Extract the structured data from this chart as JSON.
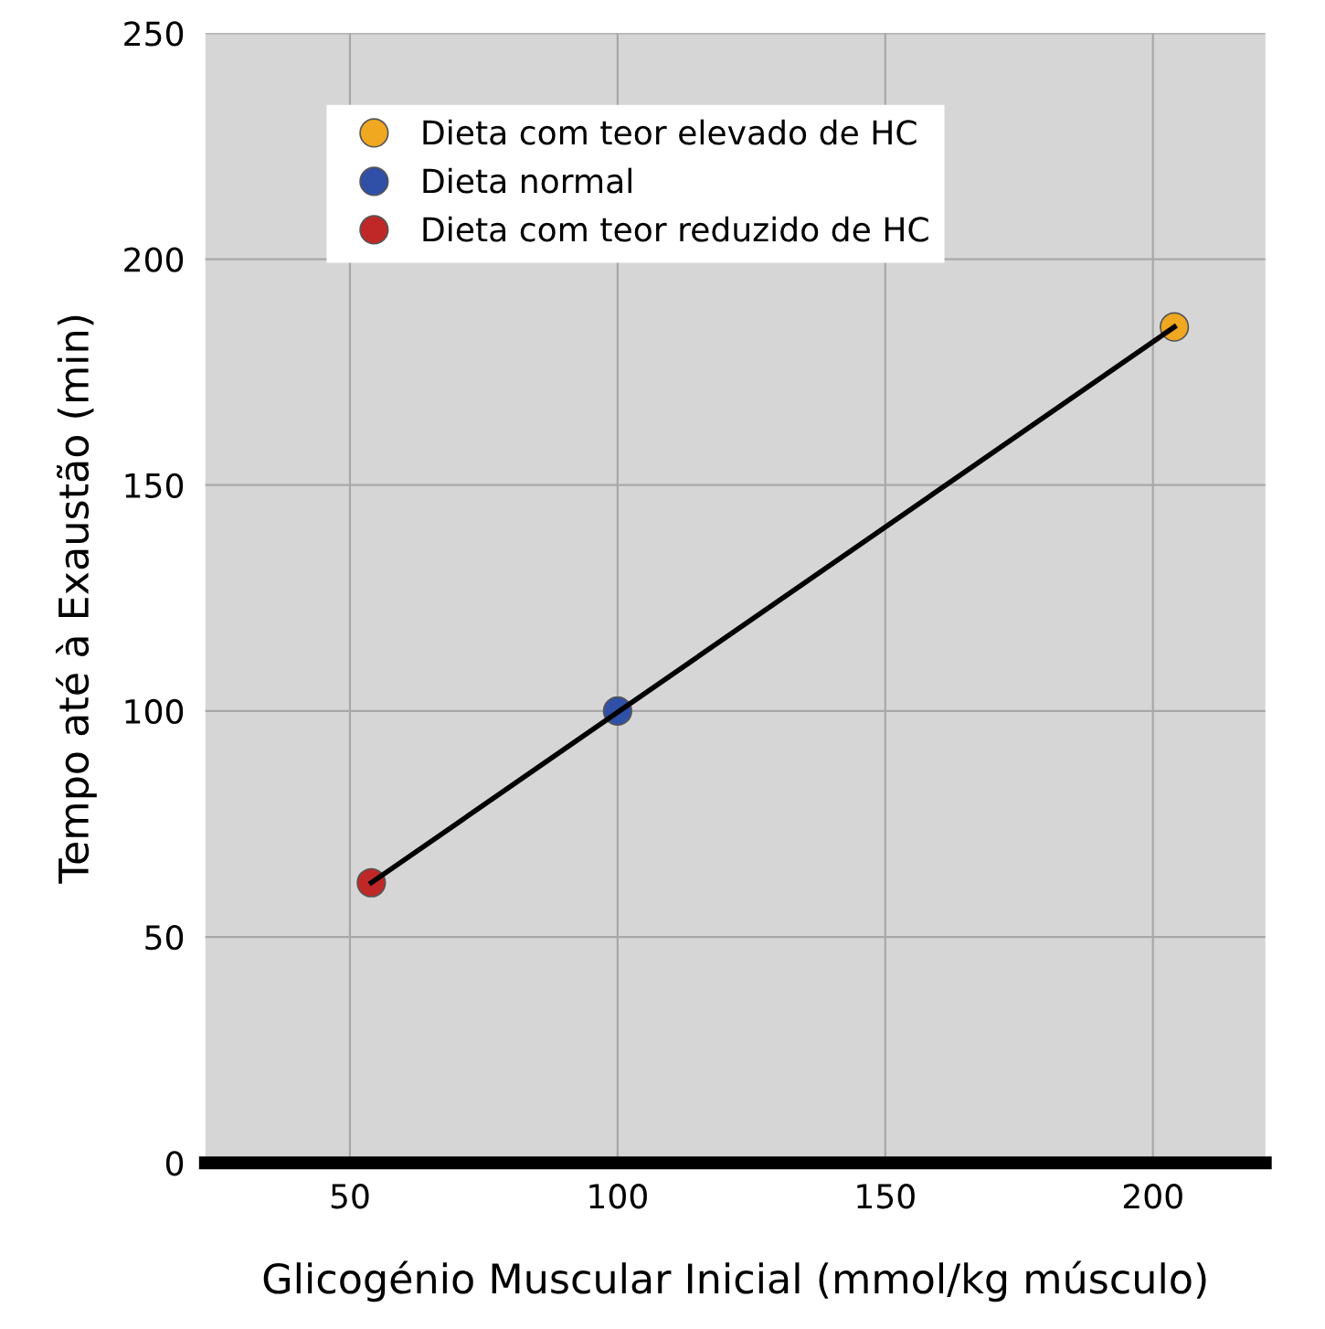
{
  "chart_data": {
    "type": "scatter",
    "xlabel": "Glicogénio Muscular Inicial (mmol/kg músculo)",
    "ylabel": "Tempo até à Exaustão (min)",
    "xlim": [
      23,
      221
    ],
    "xticks": [
      50,
      100,
      150,
      200
    ],
    "ylim": [
      0,
      250
    ],
    "yticks": [
      0,
      50,
      100,
      150,
      200,
      250
    ],
    "grid": true,
    "legend": "top left",
    "marker": "circle",
    "series": [
      {
        "type": "line",
        "marker": "none",
        "color": "#000000",
        "x": [
          54,
          204
        ],
        "values": [
          62,
          185
        ]
      },
      {
        "name": "Dieta com teor elevado de HC",
        "color": "#f0a820",
        "x": [
          204
        ],
        "values": [
          185
        ]
      },
      {
        "name": "Dieta normal",
        "color": "#3050a8",
        "x": [
          100
        ],
        "values": [
          100
        ]
      },
      {
        "name": "Dieta com teor reduzido de HC",
        "color": "#c02828",
        "x": [
          54
        ],
        "values": [
          62
        ]
      }
    ]
  }
}
